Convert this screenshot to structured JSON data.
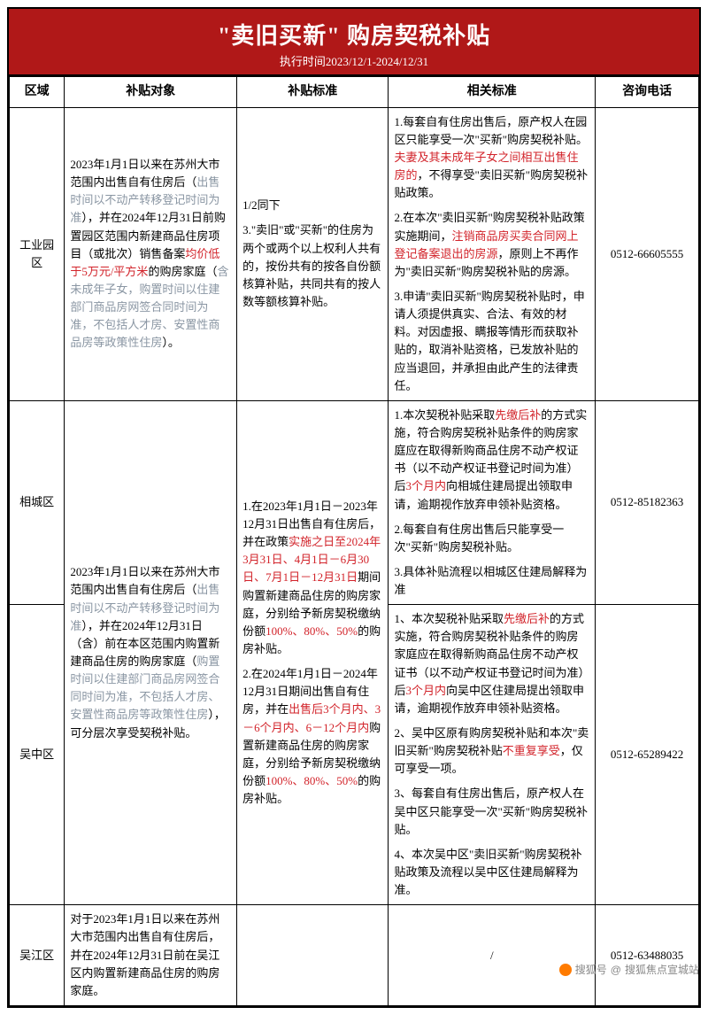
{
  "banner": {
    "title": "\"卖旧买新\" 购房契税补贴",
    "subtitle": "执行时间2023/12/1-2024/12/31",
    "bg_color": "#b01818",
    "text_color": "#ffffff"
  },
  "colors": {
    "red": "#d2232a",
    "gray": "#8a96a3",
    "border": "#000000"
  },
  "headers": {
    "c1": "区域",
    "c2": "补贴对象",
    "c3": "补贴标准",
    "c4": "相关标准",
    "c5": "咨询电话"
  },
  "r1": {
    "area": "工业园区",
    "obj_a": "2023年1月1日以来在苏州大市范围内出售自有住房后（",
    "obj_b": "出售时间以不动产转移登记时间为准",
    "obj_c": "），并在2024年12月31日前购置园区范围内新建商品住房项目（或批次）销售备案",
    "obj_d": "均价低于5万元/平方米",
    "obj_e": "的购房家庭（",
    "obj_f": "含未成年子女，购置时间以住建部门商品房网签合同时间为准，不包括人才房、安置性商品房等政策性住房",
    "obj_g": "）。",
    "std_a": "1/2同下",
    "std_b": "3.\"卖旧\"或\"买新\"的住房为两个或两个以上权利人共有的，按份共有的按各自份额核算补贴，共同共有的按人数等额核算补贴。",
    "rel_1a": "1.每套自有住房出售后，原产权人在园区只能享受一次\"买新\"购房契税补贴。",
    "rel_1b": "夫妻及其未成年子女之间相互出售住房的",
    "rel_1c": "，不得享受\"卖旧买新\"购房契税补贴政策。",
    "rel_2a": "2.在本次\"卖旧买新\"购房契税补贴政策实施期间，",
    "rel_2b": "注销商品房买卖合同网上登记备案退出的房源",
    "rel_2c": "，原则上不再作为\"卖旧买新\"购房契税补贴的房源。",
    "rel_3": "3.申请\"卖旧买新\"购房契税补贴时，申请人须提供真实、合法、有效的材料。对因虚报、瞒报等情形而获取补贴的，取消补贴资格，已发放补贴的应当退回，并承担由此产生的法律责任。",
    "phone": "0512-66605555"
  },
  "shared_obj": {
    "a": "2023年1月1日以来在苏州大市范围内出售自有住房后（",
    "b": "出售时间以不动产转移登记时间为准",
    "c": "），并在2024年12月31日（含）前在本区范围内购置新建商品住房的购房家庭（",
    "d": "购置时间以住建部门商品房网签合同时间为准，不包括人才房、安置性商品房等政策性住房",
    "e": "），可分层次享受契税补贴。"
  },
  "shared_std": {
    "p1a": "1.在2023年1月1日－2023年12月31日出售自有住房后，并在政策",
    "p1b": "实施之日至2024年3月31日、4月1日－6月30日、7月1日－12月31日",
    "p1c": "期间购置新建商品住房的购房家庭，分别给予新房契税缴纳份额",
    "p1d": "100%、80%、50%",
    "p1e": "的购房补贴。",
    "p2a": "2.在2024年1月1日－2024年12月31日期间出售自有住房，并在",
    "p2b": "出售后3个月内、3－6个月内、6－12个月内",
    "p2c": "购置新建商品住房的购房家庭，分别给予新房契税缴纳份额",
    "p2d": "100%、80%、50%",
    "p2e": "的购房补贴。"
  },
  "r2": {
    "area": "相城区",
    "rel_1a": "1.本次契税补贴采取",
    "rel_1b": "先缴后补",
    "rel_1c": "的方式实施，符合购房契税补贴条件的购房家庭应在取得新购商品住房不动产权证书（以不动产权证书登记时间为准）后",
    "rel_1d": "3个月内",
    "rel_1e": "向相城住建局提出领取申请，逾期视作放弃申领补贴资格。",
    "rel_2": "2.每套自有住房出售后只能享受一次\"买新\"购房契税补贴。",
    "rel_3": "3.具体补贴流程以相城区住建局解释为准",
    "phone": "0512-85182363"
  },
  "r3": {
    "area": "吴中区",
    "rel_1a": "1、本次契税补贴采取",
    "rel_1b": "先缴后补",
    "rel_1c": "的方式实施，符合购房契税补贴条件的购房家庭应在取得新购商品住房不动产权证书（以不动产权证书登记时间为准）后",
    "rel_1d": "3个月内",
    "rel_1e": "向吴中区住建局提出领取申请，逾期视作放弃申领补贴资格。",
    "rel_2a": "2、吴中区原有购房契税补贴和本次\"卖旧买新\"购房契税补贴",
    "rel_2b": "不重复享受",
    "rel_2c": "，仅可享受一项。",
    "rel_3": "3、每套自有住房出售后，原产权人在吴中区只能享受一次\"买新\"购房契税补贴。",
    "rel_4": "4、本次吴中区\"卖旧买新\"购房契税补贴政策及流程以吴中区住建局解释为准。",
    "phone": "0512-65289422"
  },
  "r4": {
    "area": "吴江区",
    "obj": "对于2023年1月1日以来在苏州大市范围内出售自有住房后，并在2024年12月31日前在吴江区内购置新建商品住房的购房家庭。",
    "std": "/",
    "phone": "0512-63488035"
  },
  "watermark": {
    "brand": "搜狐号",
    "sep": "@",
    "account": "搜狐焦点宣城站"
  }
}
